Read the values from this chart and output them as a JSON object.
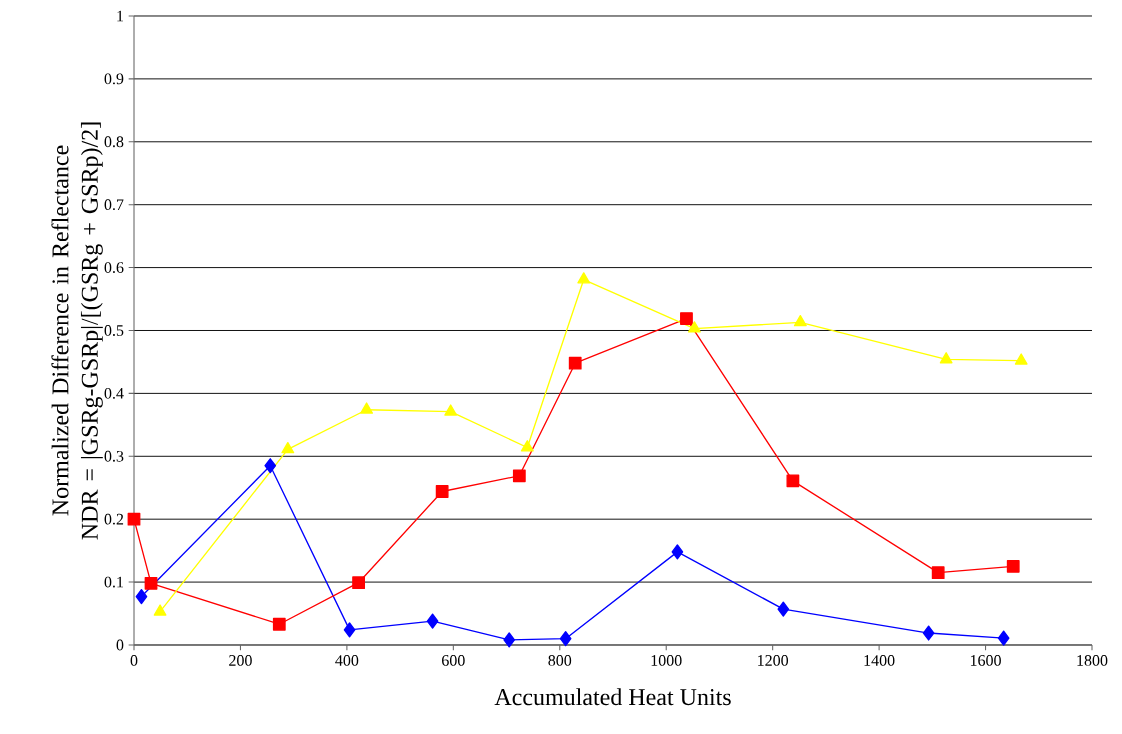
{
  "chart_data": {
    "type": "line",
    "xlabel": "Accumulated Heat Units",
    "ylabel": "Normalized Difference in Reflectance\nNDR = |GSRg-GSRp|/[(GSRg + GSRp)/2]",
    "xlim": [
      0,
      1800
    ],
    "xticks": [
      0,
      200,
      400,
      600,
      800,
      1000,
      1200,
      1400,
      1600,
      1800
    ],
    "ylim": [
      0,
      1
    ],
    "yticks": [
      0,
      0.1,
      0.2,
      0.3,
      0.4,
      0.5,
      0.6,
      0.7,
      0.8,
      0.9,
      1
    ],
    "grid": "y",
    "series": [
      {
        "color": "#0000ff",
        "marker": "diamond",
        "x": [
          14,
          256,
          405,
          561,
          705,
          811,
          1021,
          1220,
          1493,
          1634
        ],
        "values": [
          0.077,
          0.285,
          0.024,
          0.038,
          0.008,
          0.01,
          0.148,
          0.057,
          0.019,
          0.011
        ]
      },
      {
        "color": "#ff0000",
        "marker": "square",
        "x": [
          0,
          32,
          273,
          422,
          579,
          724,
          829,
          1038,
          1238,
          1511,
          1652
        ],
        "values": [
          0.2,
          0.098,
          0.033,
          0.099,
          0.244,
          0.269,
          0.448,
          0.519,
          0.261,
          0.115,
          0.125
        ]
      },
      {
        "color": "#ffff00",
        "marker": "triangle",
        "x": [
          49,
          289,
          437,
          595,
          739,
          845,
          1053,
          1252,
          1526,
          1667
        ],
        "values": [
          0.053,
          0.311,
          0.374,
          0.371,
          0.314,
          0.581,
          0.503,
          0.513,
          0.454,
          0.452
        ]
      }
    ]
  }
}
